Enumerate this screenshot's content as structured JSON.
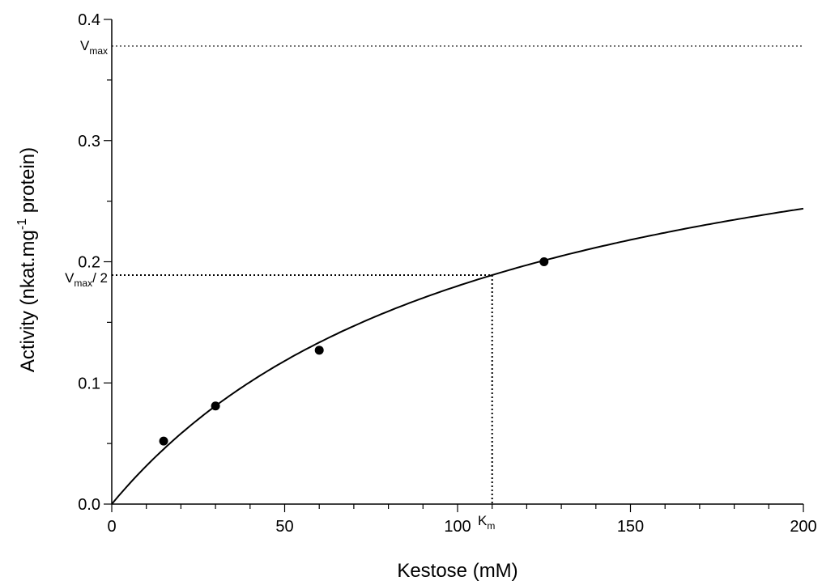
{
  "chart_data": {
    "type": "scatter",
    "title": "",
    "xlabel": "Kestose (mM)",
    "ylabel": {
      "prefix": "Activity (nkat.mg",
      "superscript": "-1",
      "suffix": " protein)"
    },
    "xlim": [
      0,
      200
    ],
    "ylim": [
      0,
      0.4
    ],
    "x_ticks": [
      "0",
      "50",
      "100",
      "150",
      "200"
    ],
    "y_ticks": [
      "0.0",
      "0.1",
      "0.2",
      "0.3",
      "0.4"
    ],
    "grid": false,
    "series": [
      {
        "values_x": [
          15,
          30,
          60,
          125
        ],
        "values_y": [
          0.052,
          0.081,
          0.127,
          0.2
        ]
      }
    ],
    "fit_curve": {
      "model": "Michaelis-Menten",
      "vmax": 0.378,
      "km": 110
    },
    "annotations": {
      "vmax": {
        "main": "V",
        "sub": "max",
        "value": 0.378
      },
      "half_vmax": {
        "main": "V",
        "sub": "max",
        "suffix": "/ 2",
        "value": 0.189
      },
      "km": {
        "main": "K",
        "sub": "m",
        "value": 110
      }
    }
  }
}
